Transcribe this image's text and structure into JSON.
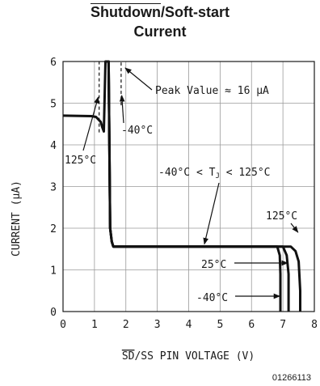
{
  "chart_data": {
    "type": "line",
    "title_line1_prefix": "Shutdown",
    "title_line1_suffix": "/Soft-start",
    "title_line2": "Current",
    "xlabel_prefix": "SD",
    "xlabel_suffix": "/SS PIN VOLTAGE (V)",
    "ylabel": "CURRENT (μA)",
    "xlim": [
      0,
      8
    ],
    "ylim": [
      0,
      6
    ],
    "xticks": [
      "0",
      "1",
      "2",
      "3",
      "4",
      "5",
      "6",
      "7",
      "8"
    ],
    "yticks": [
      "0",
      "1",
      "2",
      "3",
      "4",
      "5",
      "6"
    ],
    "figure_code": "01266113",
    "series": [
      {
        "name": "125°C",
        "style": "solid",
        "x": [
          0,
          0.9,
          1.05,
          1.2,
          1.25,
          1.3,
          1.35,
          1.45,
          1.5,
          1.55,
          1.6,
          7.25,
          7.4,
          7.5,
          7.55,
          7.55
        ],
        "y": [
          4.7,
          4.69,
          4.67,
          4.55,
          4.42,
          4.32,
          6,
          6,
          2.0,
          1.68,
          1.56,
          1.56,
          1.45,
          1.2,
          0.5,
          0
        ]
      },
      {
        "name": "25°C",
        "style": "solid",
        "x": [
          1.35,
          1.45,
          1.5,
          1.55,
          1.6,
          7.0,
          7.12,
          7.18,
          7.18
        ],
        "y": [
          6,
          6,
          2.0,
          1.68,
          1.56,
          1.56,
          1.35,
          0.9,
          0
        ]
      },
      {
        "name": "-40°C",
        "style": "solid",
        "x": [
          1.35,
          1.45,
          1.5,
          1.55,
          1.6,
          6.82,
          6.9,
          6.92,
          6.92
        ],
        "y": [
          6,
          6,
          2.0,
          1.68,
          1.56,
          1.56,
          1.35,
          0.9,
          0
        ]
      },
      {
        "name": "125°C peak",
        "style": "dashed",
        "x": [
          1.15,
          1.15
        ],
        "y": [
          4.3,
          6
        ]
      },
      {
        "name": "-40°C peak",
        "style": "dashed",
        "x": [
          1.85,
          1.85
        ],
        "y": [
          4.95,
          6
        ]
      }
    ],
    "annotations": [
      {
        "text": "Peak Value ≈ 16 μA"
      },
      {
        "text": "-40°C"
      },
      {
        "text": "125°C"
      },
      {
        "text_prefix": "-40°C < T",
        "text_sub": "J",
        "text_suffix": " < 125°C"
      },
      {
        "text": "125°C"
      },
      {
        "text": "25°C"
      },
      {
        "text": "-40°C"
      }
    ],
    "grid": true
  }
}
